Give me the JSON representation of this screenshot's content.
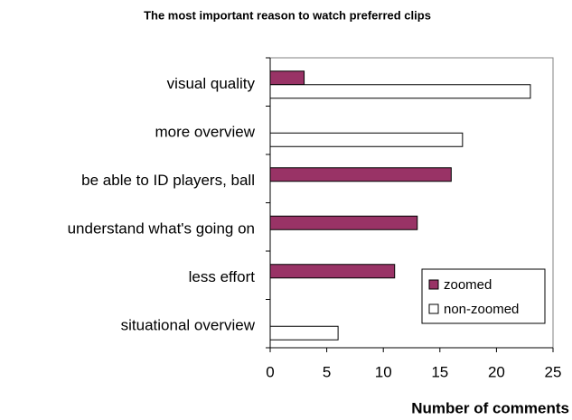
{
  "chart_data": {
    "type": "bar",
    "orientation": "horizontal",
    "title": "The most important reason to watch preferred clips",
    "x_label": "Number of comments",
    "categories": [
      "visual quality",
      "more overview",
      "be able to ID players, ball",
      "understand what's going on",
      "less effort",
      "situational overview"
    ],
    "series": [
      {
        "name": "zoomed",
        "color": "#993366",
        "values": [
          3,
          0,
          16,
          13,
          11,
          0
        ]
      },
      {
        "name": "non-zoomed",
        "color": "#ffffff",
        "values": [
          23,
          17,
          0,
          0,
          0,
          6
        ]
      }
    ],
    "xlim": [
      0,
      25
    ],
    "xticks": [
      0,
      5,
      10,
      15,
      20,
      25
    ],
    "legend": "lower right"
  }
}
